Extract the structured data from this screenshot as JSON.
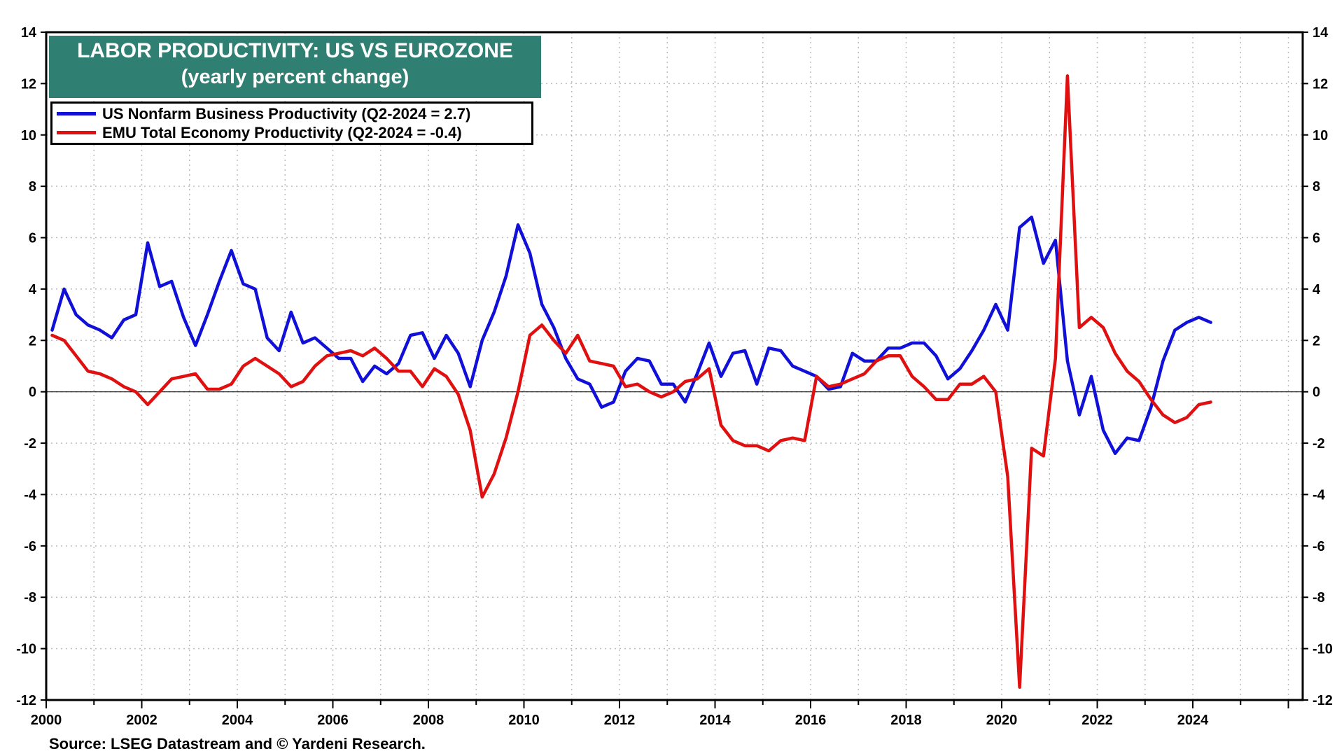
{
  "colors": {
    "us": "#1010d8",
    "emu": "#e01010",
    "title_bg": "#2f7f73"
  },
  "title": {
    "line1": "LABOR PRODUCTIVITY: US VS EUROZONE",
    "line2": "(yearly percent change)"
  },
  "legend": [
    {
      "label": "US Nonfarm Business Productivity (Q2-2024 = 2.7)",
      "color": "#1010d8"
    },
    {
      "label": "EMU Total Economy Productivity (Q2-2024 = -0.4)",
      "color": "#e01010"
    }
  ],
  "source": "Source: LSEG Datastream and © Yardeni Research.",
  "chart_data": {
    "type": "line",
    "xlim": [
      2000,
      2026.3
    ],
    "ylim": [
      -12,
      14
    ],
    "x_ticks": [
      "2000",
      "2002",
      "2004",
      "2006",
      "2008",
      "2010",
      "2012",
      "2014",
      "2016",
      "2018",
      "2020",
      "2022",
      "2024"
    ],
    "y_ticks": [
      "14",
      "12",
      "10",
      "8",
      "6",
      "4",
      "2",
      "0",
      "-2",
      "-4",
      "-6",
      "-8",
      "-10",
      "-12"
    ],
    "y_tick_values": [
      14,
      12,
      10,
      8,
      6,
      4,
      2,
      0,
      -2,
      -4,
      -6,
      -8,
      -10,
      -12
    ],
    "grid": true,
    "zero_line": true,
    "x_start": 2000.125,
    "x_step": 0.25,
    "series": [
      {
        "name": "US Nonfarm Business Productivity (Q2-2024 = 2.7)",
        "color": "#1010d8",
        "values": [
          2.4,
          4.0,
          3.0,
          2.6,
          2.4,
          2.1,
          2.8,
          3.0,
          5.8,
          4.1,
          4.3,
          2.9,
          1.8,
          3.0,
          4.3,
          5.5,
          4.2,
          4.0,
          2.1,
          1.6,
          3.1,
          1.9,
          2.1,
          1.7,
          1.3,
          1.3,
          0.4,
          1.0,
          0.7,
          1.1,
          2.2,
          2.3,
          1.3,
          2.2,
          1.5,
          0.2,
          2.0,
          3.1,
          4.5,
          6.5,
          5.4,
          3.4,
          2.5,
          1.3,
          0.5,
          0.3,
          -0.6,
          -0.4,
          0.8,
          1.3,
          1.2,
          0.3,
          0.3,
          -0.4,
          0.7,
          1.9,
          0.6,
          1.5,
          1.6,
          0.3,
          1.7,
          1.6,
          1.0,
          0.8,
          0.6,
          0.1,
          0.2,
          1.5,
          1.2,
          1.2,
          1.7,
          1.7,
          1.9,
          1.9,
          1.4,
          0.5,
          0.9,
          1.6,
          2.4,
          3.4,
          2.4,
          6.4,
          6.8,
          5.0,
          5.9,
          1.2,
          -0.9,
          0.6,
          -1.5,
          -2.4,
          -1.8,
          -1.9,
          -0.6,
          1.2,
          2.4,
          2.7,
          2.9,
          2.7
        ]
      },
      {
        "name": "EMU Total Economy Productivity (Q2-2024 = -0.4)",
        "color": "#e01010",
        "values": [
          2.2,
          2.0,
          1.4,
          0.8,
          0.7,
          0.5,
          0.2,
          0.0,
          -0.5,
          0.0,
          0.5,
          0.6,
          0.7,
          0.1,
          0.1,
          0.3,
          1.0,
          1.3,
          1.0,
          0.7,
          0.2,
          0.4,
          1.0,
          1.4,
          1.5,
          1.6,
          1.4,
          1.7,
          1.3,
          0.8,
          0.8,
          0.2,
          0.9,
          0.6,
          -0.1,
          -1.5,
          -4.1,
          -3.2,
          -1.8,
          0.0,
          2.2,
          2.6,
          2.0,
          1.5,
          2.2,
          1.2,
          1.1,
          1.0,
          0.2,
          0.3,
          0.0,
          -0.2,
          0.0,
          0.4,
          0.5,
          0.9,
          -1.3,
          -1.9,
          -2.1,
          -2.1,
          -2.3,
          -1.9,
          -1.8,
          -1.9,
          0.6,
          0.2,
          0.3,
          0.5,
          0.7,
          1.2,
          1.4,
          1.4,
          0.6,
          0.2,
          -0.3,
          -0.3,
          0.3,
          0.3,
          0.6,
          0.0,
          -3.3,
          -11.5,
          -2.2,
          -2.5,
          1.3,
          12.3,
          2.5,
          2.9,
          2.5,
          1.5,
          0.8,
          0.4,
          -0.3,
          -0.9,
          -1.2,
          -1.0,
          -0.5,
          -0.4
        ]
      }
    ]
  }
}
